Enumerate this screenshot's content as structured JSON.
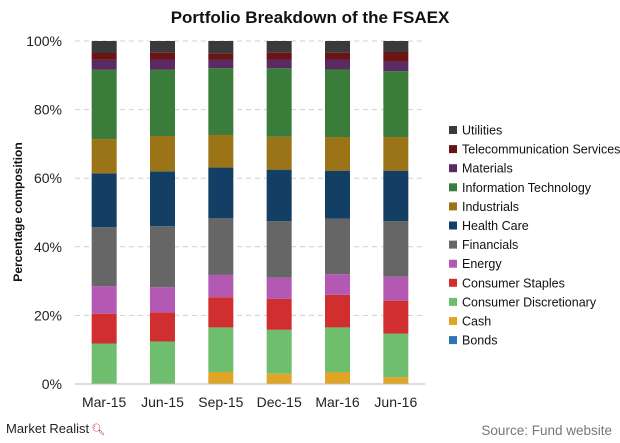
{
  "chart_data": {
    "type": "bar",
    "stacked": true,
    "title": "Portfolio Breakdown of the FSAEX",
    "xlabel": "",
    "ylabel": "Percentage composition",
    "ylim": [
      0,
      100
    ],
    "y_tick_labels": [
      "0%",
      "20%",
      "40%",
      "60%",
      "80%",
      "100%"
    ],
    "grid": true,
    "legend_position": "right",
    "categories": [
      "Mar-15",
      "Jun-15",
      "Sep-15",
      "Dec-15",
      "Mar-16",
      "Jun-16"
    ],
    "series": [
      {
        "name": "Bonds",
        "color": "#2e75b6",
        "values": [
          0,
          0,
          0,
          0,
          0,
          0
        ]
      },
      {
        "name": "Cash",
        "color": "#e0a526",
        "values": [
          0,
          0,
          3.5,
          3.0,
          3.5,
          2.0
        ]
      },
      {
        "name": "Consumer Discretionary",
        "color": "#6ebe6e",
        "values": [
          11.8,
          12.4,
          13.0,
          12.8,
          13.0,
          12.7
        ]
      },
      {
        "name": "Consumer Staples",
        "color": "#d12f2f",
        "values": [
          8.7,
          8.5,
          8.8,
          9.0,
          9.5,
          9.6
        ]
      },
      {
        "name": "Energy",
        "color": "#b359b3",
        "values": [
          8.0,
          7.3,
          6.5,
          6.2,
          6.0,
          7.0
        ]
      },
      {
        "name": "Financials",
        "color": "#666666",
        "values": [
          17.2,
          17.8,
          16.5,
          16.5,
          16.2,
          16.2
        ]
      },
      {
        "name": "Health Care",
        "color": "#123f63",
        "values": [
          15.7,
          16.0,
          14.8,
          15.0,
          14.0,
          14.7
        ]
      },
      {
        "name": "Industrials",
        "color": "#9a7417",
        "values": [
          10.0,
          10.3,
          9.5,
          9.6,
          9.8,
          9.8
        ]
      },
      {
        "name": "Information Technology",
        "color": "#3a7d3a",
        "values": [
          20.2,
          19.3,
          19.5,
          20.0,
          19.7,
          19.2
        ]
      },
      {
        "name": "Materials",
        "color": "#5c2a62",
        "values": [
          2.9,
          3.0,
          2.5,
          2.5,
          2.9,
          2.8
        ]
      },
      {
        "name": "Telecommunication Services",
        "color": "#6b1414",
        "values": [
          2.0,
          2.0,
          1.8,
          2.0,
          2.0,
          2.8
        ]
      },
      {
        "name": "Utilities",
        "color": "#3a3a3a",
        "values": [
          3.5,
          3.4,
          3.6,
          3.4,
          3.4,
          3.2
        ]
      }
    ]
  },
  "footer": {
    "brand": "Market Realist",
    "brand_icon": "magnifier-icon",
    "source": "Source: Fund website"
  }
}
